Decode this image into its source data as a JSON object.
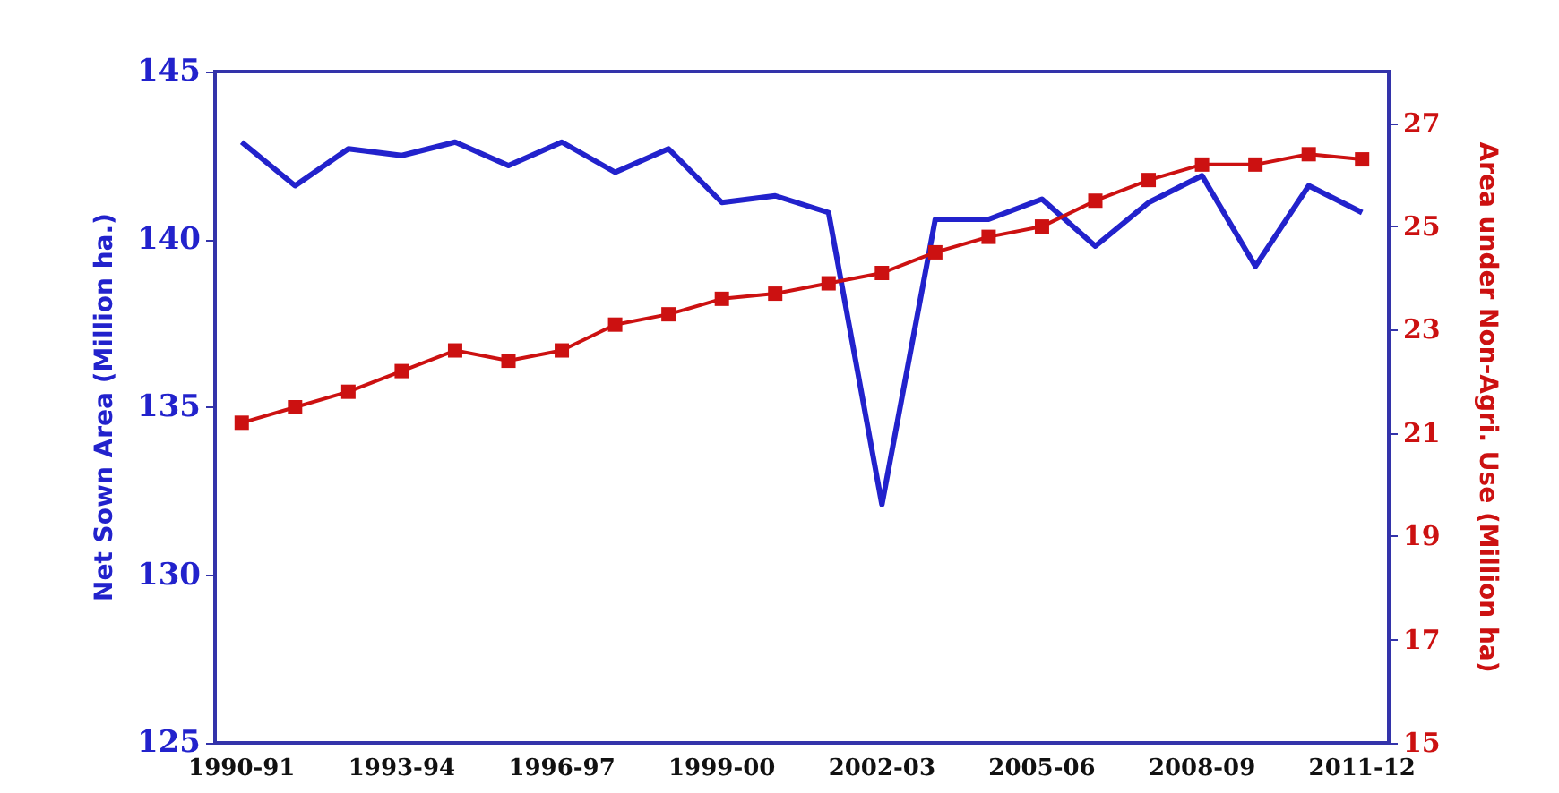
{
  "chart_data": {
    "type": "line",
    "ylabel": "Net Sown Area (Million ha.)",
    "y2label": "Area under Non-Agri. Use (Million ha)",
    "categories": [
      "1990-91",
      null,
      null,
      "1993-94",
      null,
      null,
      "1996-97",
      null,
      null,
      "1999-00",
      null,
      null,
      "2002-03",
      null,
      null,
      "2005-06",
      null,
      null,
      "2008-09",
      null,
      null,
      "2011-12"
    ],
    "series": [
      {
        "color": "#2222cc",
        "marker": "none",
        "values": [
          142.9,
          141.6,
          142.7,
          142.5,
          142.9,
          142.2,
          142.9,
          142.0,
          142.7,
          141.1,
          141.3,
          140.8,
          132.1,
          140.6,
          140.6,
          141.2,
          139.8,
          141.1,
          141.9,
          139.2,
          141.6,
          140.8
        ]
      },
      {
        "color": "#cc1111",
        "marker": "square",
        "axis": "y2",
        "values": [
          21.2,
          21.5,
          21.8,
          22.2,
          22.6,
          22.4,
          22.6,
          23.1,
          23.3,
          23.6,
          23.7,
          23.9,
          24.1,
          24.5,
          24.8,
          25.0,
          25.5,
          25.9,
          26.2,
          26.2,
          26.4,
          26.3
        ]
      }
    ],
    "ylim": [
      125,
      145
    ],
    "yticks": [
      125,
      130,
      135,
      140,
      145
    ],
    "y2lim": [
      15,
      28
    ],
    "y2ticks": [
      15,
      17,
      19,
      21,
      23,
      25,
      27
    ],
    "grid": false
  }
}
